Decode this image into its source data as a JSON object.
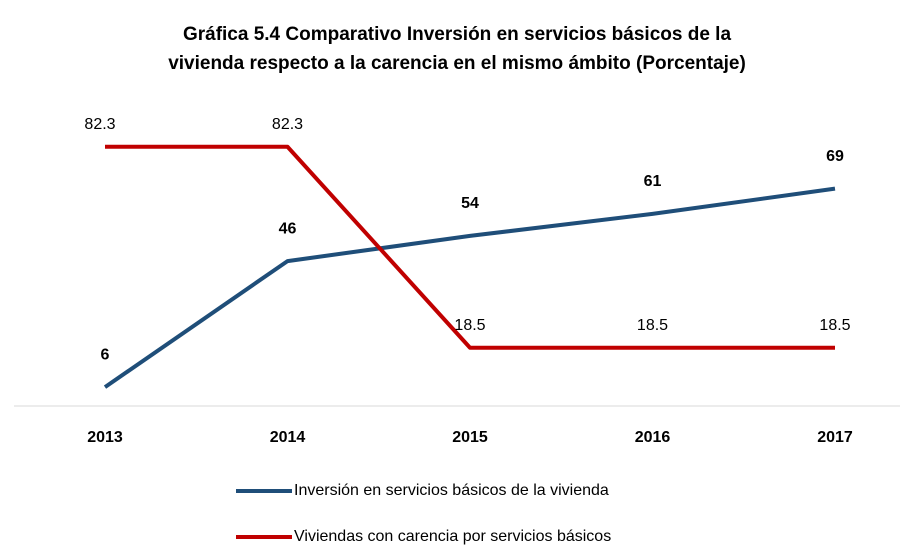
{
  "chart_data": {
    "type": "line",
    "title": [
      "Gráfica 5.4 Comparativo Inversión en servicios básicos de la",
      "vivienda respecto a la carencia en el mismo ámbito (Porcentaje)"
    ],
    "categories": [
      "2013",
      "2014",
      "2015",
      "2016",
      "2017"
    ],
    "series": [
      {
        "name": "Inversión en servicios básicos de la vivienda",
        "color": "#1f4e79",
        "values": [
          6,
          46,
          54,
          61,
          69
        ]
      },
      {
        "name": "Viviendas con carencia por servicios básicos",
        "color": "#c00000",
        "values": [
          82.3,
          82.3,
          18.5,
          18.5,
          18.5
        ]
      }
    ],
    "ylim": [
      0,
      90
    ]
  }
}
